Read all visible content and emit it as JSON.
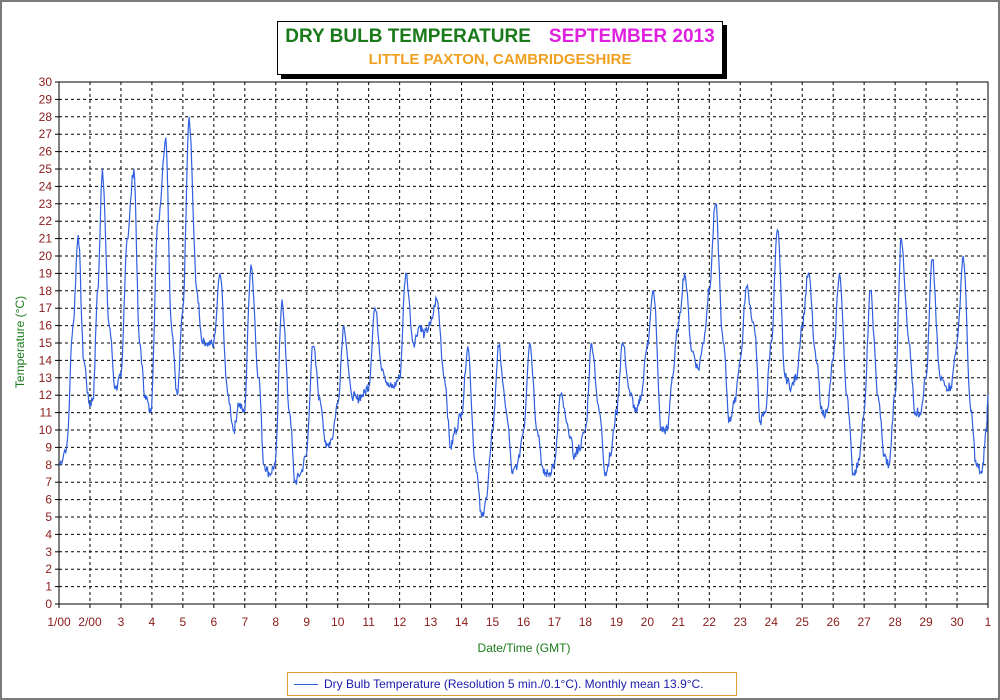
{
  "chart_data": {
    "type": "line",
    "title": "DRY BULB TEMPERATURE",
    "title_month": "SEPTEMBER 2013",
    "subtitle": "LITTLE PAXTON, CAMBRIDGESHIRE",
    "xlabel": "Date/Time (GMT)",
    "ylabel": "Temperature (°C)",
    "ylim": [
      0,
      30
    ],
    "xlim": [
      1,
      31
    ],
    "grid": true,
    "legend_position": "bottom",
    "x_tick_labels": [
      "1/00",
      "2/00",
      "3",
      "4",
      "5",
      "6",
      "7",
      "8",
      "9",
      "10",
      "11",
      "12",
      "13",
      "14",
      "15",
      "16",
      "17",
      "18",
      "19",
      "20",
      "21",
      "22",
      "23",
      "24",
      "25",
      "26",
      "27",
      "28",
      "29",
      "30",
      "1"
    ],
    "y_ticks": [
      0,
      1,
      2,
      3,
      4,
      5,
      6,
      7,
      8,
      9,
      10,
      11,
      12,
      13,
      14,
      15,
      16,
      17,
      18,
      19,
      20,
      21,
      22,
      23,
      24,
      25,
      26,
      27,
      28,
      29,
      30
    ],
    "series": [
      {
        "name": "Dry Bulb Temperature (Resolution 5 min./0.1°C). Monthly mean 13.9°C.",
        "color": "#3060e0",
        "x": [
          1.0,
          1.25,
          1.45,
          1.62,
          1.8,
          1.98,
          2.1,
          2.25,
          2.4,
          2.62,
          2.82,
          3.0,
          3.2,
          3.42,
          3.6,
          3.78,
          3.96,
          4.2,
          4.45,
          4.63,
          4.82,
          5.0,
          5.2,
          5.45,
          5.62,
          5.8,
          6.0,
          6.2,
          6.45,
          6.65,
          6.8,
          6.98,
          7.2,
          7.45,
          7.62,
          7.8,
          7.98,
          8.2,
          8.45,
          8.62,
          8.8,
          8.98,
          9.2,
          9.45,
          9.63,
          9.8,
          10.0,
          10.2,
          10.45,
          10.62,
          10.8,
          11.0,
          11.2,
          11.45,
          11.65,
          11.8,
          12.0,
          12.2,
          12.45,
          12.65,
          12.8,
          12.98,
          13.2,
          13.45,
          13.65,
          13.8,
          14.0,
          14.2,
          14.45,
          14.65,
          14.8,
          15.0,
          15.2,
          15.45,
          15.65,
          15.8,
          16.0,
          16.2,
          16.45,
          16.65,
          16.8,
          17.0,
          17.2,
          17.45,
          17.65,
          17.8,
          18.0,
          18.2,
          18.45,
          18.65,
          18.8,
          19.0,
          19.2,
          19.45,
          19.65,
          19.8,
          20.0,
          20.2,
          20.45,
          20.65,
          20.8,
          21.0,
          21.2,
          21.45,
          21.65,
          21.8,
          22.0,
          22.2,
          22.45,
          22.65,
          22.8,
          23.0,
          23.2,
          23.45,
          23.65,
          23.8,
          24.0,
          24.2,
          24.45,
          24.65,
          24.8,
          25.0,
          25.2,
          25.45,
          25.65,
          25.8,
          26.0,
          26.2,
          26.45,
          26.65,
          26.8,
          27.0,
          27.2,
          27.45,
          27.65,
          27.8,
          28.0,
          28.2,
          28.45,
          28.65,
          28.8,
          29.0,
          29.2,
          29.45,
          29.65,
          29.8,
          30.0,
          30.2,
          30.45,
          30.62,
          30.8,
          30.95,
          31.0
        ],
        "values": [
          8.0,
          9.0,
          16.0,
          21.2,
          14.0,
          11.5,
          11.8,
          18.0,
          25.0,
          16.0,
          12.4,
          13.0,
          21.0,
          25.0,
          15.0,
          12.0,
          11.0,
          22.0,
          26.8,
          16.0,
          12.0,
          17.0,
          28.0,
          18.0,
          15.0,
          14.8,
          15.0,
          19.0,
          12.0,
          10.0,
          11.5,
          11.0,
          19.5,
          13.0,
          8.0,
          7.5,
          8.0,
          17.5,
          11.0,
          7.0,
          7.5,
          8.5,
          14.8,
          11.5,
          9.0,
          9.5,
          11.5,
          16.0,
          12.0,
          11.8,
          12.0,
          12.5,
          17.0,
          13.5,
          12.5,
          12.5,
          13.0,
          19.0,
          15.0,
          16.0,
          15.5,
          16.0,
          17.5,
          13.0,
          9.0,
          10.0,
          11.0,
          14.8,
          8.0,
          5.0,
          6.0,
          10.0,
          14.8,
          11.0,
          7.5,
          8.0,
          10.0,
          15.0,
          10.0,
          7.5,
          7.5,
          8.0,
          12.0,
          10.0,
          8.5,
          9.0,
          10.0,
          15.0,
          11.0,
          7.5,
          8.5,
          11.0,
          15.0,
          12.0,
          11.0,
          12.0,
          15.0,
          18.0,
          10.0,
          10.0,
          13.0,
          16.0,
          19.0,
          14.5,
          13.5,
          15.0,
          18.0,
          23.0,
          15.0,
          10.5,
          11.5,
          14.0,
          18.2,
          16.0,
          10.5,
          11.0,
          15.0,
          21.5,
          13.0,
          12.5,
          13.0,
          16.0,
          19.0,
          14.0,
          11.0,
          11.0,
          14.0,
          19.0,
          12.0,
          7.5,
          8.0,
          11.0,
          18.0,
          12.0,
          8.5,
          8.0,
          12.0,
          21.0,
          15.0,
          11.0,
          11.0,
          13.0,
          19.8,
          13.0,
          12.5,
          12.5,
          15.0,
          20.0,
          11.0,
          8.0,
          7.5,
          10.0,
          12.0
        ]
      }
    ]
  }
}
